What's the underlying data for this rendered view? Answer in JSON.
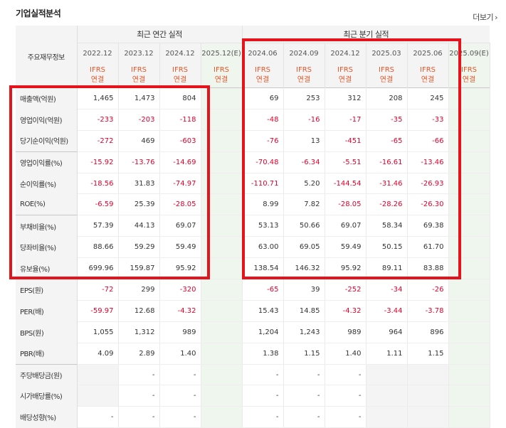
{
  "title": "기업실적분석",
  "more_label": "더보기",
  "more_icon": "chevron-right-icon",
  "row_header_label": "주요재무정보",
  "annual_group_label": "최근 연간 실적",
  "quarter_group_label": "최근 분기 실적",
  "periods": [
    "2022.12",
    "2023.12",
    "2024.12",
    "2025.12(E)",
    "2024.06",
    "2024.09",
    "2024.12",
    "2025.03",
    "2025.06",
    "2025.09(E)"
  ],
  "ifrs_line1": "IFRS",
  "ifrs_line2": "연결",
  "highlight_color": "#e6121c",
  "rows": [
    {
      "label": "매출액(억원)",
      "values": [
        "1,465",
        "1,473",
        "804",
        "",
        "69",
        "253",
        "312",
        "208",
        "245",
        ""
      ]
    },
    {
      "label": "영업이익(억원)",
      "values": [
        "-233",
        "-203",
        "-118",
        "",
        "-48",
        "-16",
        "-17",
        "-35",
        "-33",
        ""
      ]
    },
    {
      "label": "당기순이익(억원)",
      "values": [
        "-272",
        "469",
        "-603",
        "",
        "-76",
        "13",
        "-451",
        "-65",
        "-66",
        ""
      ]
    },
    {
      "label": "영업이익률(%)",
      "values": [
        "-15.92",
        "-13.76",
        "-14.69",
        "",
        "-70.48",
        "-6.34",
        "-5.51",
        "-16.61",
        "-13.46",
        ""
      ]
    },
    {
      "label": "순이익률(%)",
      "values": [
        "-18.56",
        "31.83",
        "-74.97",
        "",
        "-110.71",
        "5.20",
        "-144.54",
        "-31.46",
        "-26.93",
        ""
      ]
    },
    {
      "label": "ROE(%)",
      "values": [
        "-6.59",
        "25.39",
        "-28.05",
        "",
        "8.99",
        "7.82",
        "-28.05",
        "-28.26",
        "-26.30",
        ""
      ]
    },
    {
      "label": "부채비율(%)",
      "values": [
        "57.39",
        "44.13",
        "69.07",
        "",
        "53.13",
        "50.66",
        "69.07",
        "58.34",
        "69.38",
        ""
      ]
    },
    {
      "label": "당좌비율(%)",
      "values": [
        "88.66",
        "59.29",
        "59.49",
        "",
        "63.00",
        "69.05",
        "59.49",
        "50.15",
        "61.70",
        ""
      ]
    },
    {
      "label": "유보율(%)",
      "values": [
        "699.96",
        "159.87",
        "95.92",
        "",
        "138.54",
        "146.32",
        "95.92",
        "89.11",
        "83.88",
        ""
      ]
    },
    {
      "label": "EPS(원)",
      "values": [
        "-72",
        "299",
        "-320",
        "",
        "-65",
        "39",
        "-252",
        "-34",
        "-26",
        ""
      ]
    },
    {
      "label": "PER(배)",
      "values": [
        "-59.97",
        "12.68",
        "-4.32",
        "",
        "15.43",
        "14.85",
        "-4.32",
        "-3.44",
        "-3.78",
        ""
      ]
    },
    {
      "label": "BPS(원)",
      "values": [
        "1,055",
        "1,312",
        "989",
        "",
        "1,204",
        "1,243",
        "989",
        "964",
        "896",
        ""
      ]
    },
    {
      "label": "PBR(배)",
      "values": [
        "4.09",
        "2.89",
        "1.40",
        "",
        "1.38",
        "1.15",
        "1.40",
        "1.11",
        "1.15",
        ""
      ]
    },
    {
      "label": "주당배당금(원)",
      "values": [
        "",
        "-",
        "-",
        "",
        "-",
        "-",
        "-",
        "",
        "",
        ""
      ]
    },
    {
      "label": "시가배당률(%)",
      "values": [
        "",
        "-",
        "-",
        "",
        "-",
        "-",
        "-",
        "",
        "",
        ""
      ]
    },
    {
      "label": "배당성향(%)",
      "values": [
        "-",
        "-",
        "-",
        "",
        "-",
        "-",
        "-",
        "",
        "",
        ""
      ]
    }
  ]
}
